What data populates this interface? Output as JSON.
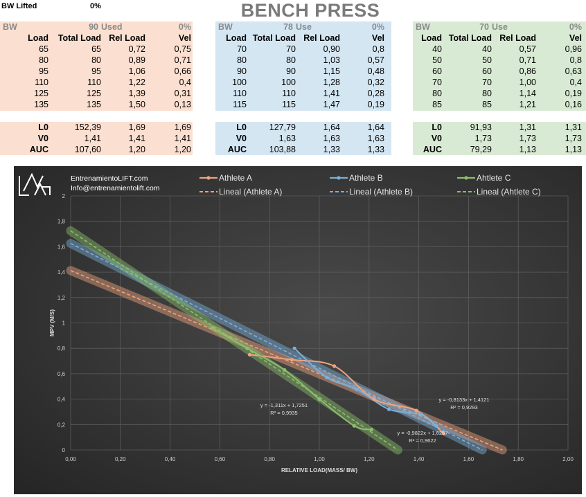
{
  "header": {
    "bw_lifted_label": "BW Lifted",
    "bw_lifted_value": "0%",
    "title": "BENCH PRESS"
  },
  "tables": [
    {
      "bw_label": "BW",
      "bw_value": "90",
      "used_label": "Used",
      "pct": "0%",
      "columns": [
        "Load",
        "Total Load",
        "Rel Load",
        "Vel"
      ],
      "rows": [
        [
          "65",
          "65",
          "0,72",
          "0,75"
        ],
        [
          "80",
          "80",
          "0,89",
          "0,71"
        ],
        [
          "95",
          "95",
          "1,06",
          "0,66"
        ],
        [
          "110",
          "110",
          "1,22",
          "0,4"
        ],
        [
          "125",
          "125",
          "1,39",
          "0,31"
        ],
        [
          "135",
          "135",
          "1,50",
          "0,13"
        ]
      ],
      "summary": [
        [
          "L0",
          "152,39",
          "1,69",
          "1,69"
        ],
        [
          "V0",
          "1,41",
          "1,41",
          "1,41"
        ],
        [
          "AUC",
          "107,60",
          "1,20",
          "1,20"
        ]
      ]
    },
    {
      "bw_label": "BW",
      "bw_value": "78",
      "used_label": "Use",
      "pct": "0%",
      "columns": [
        "Load",
        "Total Load",
        "Rel Load",
        "Vel"
      ],
      "rows": [
        [
          "70",
          "70",
          "0,90",
          "0,8"
        ],
        [
          "80",
          "80",
          "1,03",
          "0,57"
        ],
        [
          "90",
          "90",
          "1,15",
          "0,48"
        ],
        [
          "100",
          "100",
          "1,28",
          "0,32"
        ],
        [
          "110",
          "110",
          "1,41",
          "0,28"
        ],
        [
          "115",
          "115",
          "1,47",
          "0,19"
        ]
      ],
      "summary": [
        [
          "L0",
          "127,79",
          "1,64",
          "1,64"
        ],
        [
          "V0",
          "1,63",
          "1,63",
          "1,63"
        ],
        [
          "AUC",
          "103,88",
          "1,33",
          "1,33"
        ]
      ]
    },
    {
      "bw_label": "BW",
      "bw_value": "70",
      "used_label": "Use",
      "pct": "0%",
      "columns": [
        "Load",
        "Total Load",
        "Rel Load",
        "Vel"
      ],
      "rows": [
        [
          "40",
          "40",
          "0,57",
          "0,96"
        ],
        [
          "50",
          "50",
          "0,71",
          "0,8"
        ],
        [
          "60",
          "60",
          "0,86",
          "0,63"
        ],
        [
          "70",
          "70",
          "1,00",
          "0,4"
        ],
        [
          "80",
          "80",
          "1,14",
          "0,19"
        ],
        [
          "85",
          "85",
          "1,21",
          "0,16"
        ]
      ],
      "summary": [
        [
          "L0",
          "91,93",
          "1,31",
          "1,31"
        ],
        [
          "V0",
          "1,73",
          "1,73",
          "1,73"
        ],
        [
          "AUC",
          "79,29",
          "1,13",
          "1,13"
        ]
      ]
    }
  ],
  "chart_data": {
    "type": "line",
    "title": "",
    "xlabel": "RELATIVE LOAD(MASS/ BW)",
    "ylabel": "MPV (M/S)",
    "xlim": [
      0,
      2
    ],
    "ylim": [
      0,
      2
    ],
    "xticks": [
      "0,00",
      "0,20",
      "0,40",
      "0,60",
      "0,80",
      "1,00",
      "1,20",
      "1,40",
      "1,60",
      "1,80",
      "2,00"
    ],
    "yticks": [
      "0",
      "0,2",
      "0,4",
      "0,6",
      "0,8",
      "1",
      "1,2",
      "1,4",
      "1,6",
      "1,8",
      "2"
    ],
    "grid": true,
    "legend_position": "top",
    "branding": [
      "EntrenamientoLIFT.com",
      "Info@entrenamientolift.com"
    ],
    "series": [
      {
        "name": "Athlete A",
        "color": "#f0a37e",
        "x": [
          0.72,
          0.89,
          1.06,
          1.22,
          1.39,
          1.5
        ],
        "y": [
          0.75,
          0.71,
          0.66,
          0.4,
          0.31,
          0.13
        ],
        "trend_name": "Lineal (Athlete A)",
        "slope": -0.8133,
        "intercept": 1.4121,
        "equation": "y = -0,8133x + 1,4121",
        "r2": "R² = 0,9293"
      },
      {
        "name": "Athlete B",
        "color": "#7ab0db",
        "x": [
          0.9,
          1.03,
          1.15,
          1.28,
          1.41,
          1.47
        ],
        "y": [
          0.8,
          0.57,
          0.48,
          0.32,
          0.28,
          0.19
        ],
        "trend_name": "Lineal (Athlete B)",
        "slope": -0.9822,
        "intercept": 1.6257,
        "equation": "y = -0,9822x + 1,6257",
        "r2": "R² = 0,9622"
      },
      {
        "name": "Ahtlete C",
        "color": "#8cc06b",
        "x": [
          0.57,
          0.71,
          0.86,
          1.0,
          1.14,
          1.21
        ],
        "y": [
          0.96,
          0.8,
          0.63,
          0.4,
          0.19,
          0.16
        ],
        "trend_name": "Lineal (Ahtlete C)",
        "slope": -1.311,
        "intercept": 1.7251,
        "equation": "y = -1,311x + 1,7251",
        "r2": "R² = 0,9935"
      }
    ]
  }
}
